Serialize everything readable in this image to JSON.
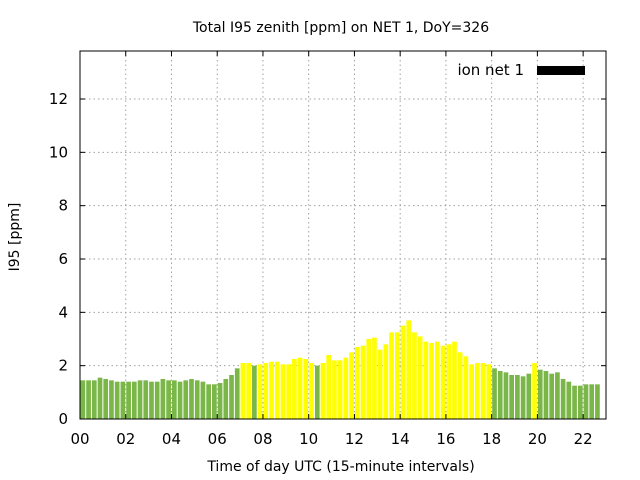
{
  "chart_data": {
    "type": "bar",
    "title": "Total I95 zenith [ppm] on NET 1, DoY=326",
    "xlabel": "Time of day UTC (15-minute intervals)",
    "ylabel": "I95 [ppm]",
    "xlim": [
      0,
      23
    ],
    "ylim": [
      0,
      13.8
    ],
    "x_ticks": [
      0,
      2,
      4,
      6,
      8,
      10,
      12,
      14,
      16,
      18,
      20,
      22
    ],
    "x_tick_labels": [
      "00",
      "02",
      "04",
      "06",
      "08",
      "10",
      "12",
      "14",
      "16",
      "18",
      "20",
      "22"
    ],
    "y_ticks": [
      0,
      2,
      4,
      6,
      8,
      10,
      12
    ],
    "y_tick_labels": [
      "0",
      "2",
      "4",
      "6",
      "8",
      "10",
      "12"
    ],
    "grid": true,
    "legend": {
      "label": "ion net 1",
      "color": "#000000",
      "placement": "top-right"
    },
    "colors": {
      "green": "#7ab648",
      "yellow": "#ffff00"
    },
    "interval_hours": 0.25,
    "series": [
      {
        "values": [
          1.45,
          1.45,
          1.45,
          1.55,
          1.5,
          1.45,
          1.4,
          1.4,
          1.4,
          1.4,
          1.45,
          1.45,
          1.4,
          1.4,
          1.5,
          1.45,
          1.45,
          1.4,
          1.45,
          1.5,
          1.45,
          1.4,
          1.3,
          1.3,
          1.35,
          1.5,
          1.65,
          1.9,
          2.1,
          2.1,
          2.0,
          2.05,
          2.1,
          2.15,
          2.15,
          2.05,
          2.05,
          2.25,
          2.3,
          2.25,
          2.1,
          2.0,
          2.1,
          2.4,
          2.2,
          2.2,
          2.3,
          2.5,
          2.7,
          2.75,
          3.0,
          3.05,
          2.6,
          2.8,
          3.25,
          3.25,
          3.5,
          3.7,
          3.25,
          3.1,
          2.9,
          2.85,
          2.9,
          2.75,
          2.8,
          2.9,
          2.5,
          2.35,
          2.05,
          2.1,
          2.1,
          2.05,
          1.9,
          1.8,
          1.75,
          1.65,
          1.65,
          1.6,
          1.7,
          2.1,
          1.85,
          1.8,
          1.7,
          1.75,
          1.5,
          1.4,
          1.25,
          1.25,
          1.3,
          1.3,
          1.3
        ],
        "colors": [
          "green",
          "green",
          "green",
          "green",
          "green",
          "green",
          "green",
          "green",
          "green",
          "green",
          "green",
          "green",
          "green",
          "green",
          "green",
          "green",
          "green",
          "green",
          "green",
          "green",
          "green",
          "green",
          "green",
          "green",
          "green",
          "green",
          "green",
          "green",
          "yellow",
          "yellow",
          "green",
          "yellow",
          "yellow",
          "yellow",
          "yellow",
          "yellow",
          "yellow",
          "yellow",
          "yellow",
          "yellow",
          "yellow",
          "green",
          "yellow",
          "yellow",
          "yellow",
          "yellow",
          "yellow",
          "yellow",
          "yellow",
          "yellow",
          "yellow",
          "yellow",
          "yellow",
          "yellow",
          "yellow",
          "yellow",
          "yellow",
          "yellow",
          "yellow",
          "yellow",
          "yellow",
          "yellow",
          "yellow",
          "yellow",
          "yellow",
          "yellow",
          "yellow",
          "yellow",
          "yellow",
          "yellow",
          "yellow",
          "yellow",
          "green",
          "green",
          "green",
          "green",
          "green",
          "green",
          "green",
          "yellow",
          "green",
          "green",
          "green",
          "green",
          "green",
          "green",
          "green",
          "green",
          "green",
          "green",
          "green"
        ]
      }
    ]
  }
}
